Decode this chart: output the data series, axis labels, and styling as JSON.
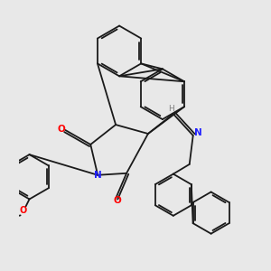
{
  "background_color": "#e8e8e8",
  "line_color": "#1a1a1a",
  "N_color": "#2020ff",
  "O_color": "#ff0000",
  "H_color": "#808080",
  "figsize": [
    3.0,
    3.0
  ],
  "dpi": 100,
  "xlim": [
    -1.0,
    5.5
  ],
  "ylim": [
    -3.5,
    4.0
  ]
}
